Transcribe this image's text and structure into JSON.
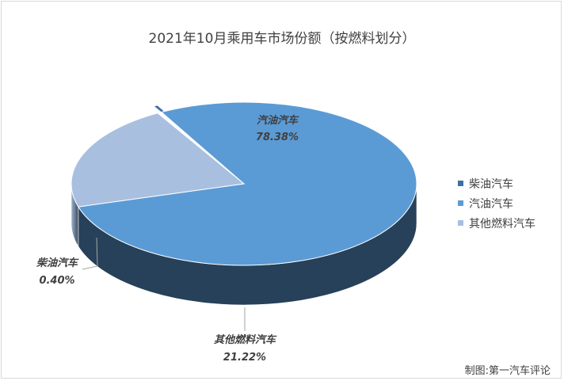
{
  "chart_data": {
    "type": "pie",
    "title": "2021年10月乘用车市场份额（按燃料划分）",
    "categories": [
      "柴油汽车",
      "汽油汽车",
      "其他燃料汽车"
    ],
    "values": [
      0.4,
      78.38,
      21.22
    ],
    "value_labels": [
      "0.40%",
      "78.38%",
      "21.22%"
    ],
    "colors": [
      "#3f6fa5",
      "#5b9bd5",
      "#a9bfe0"
    ],
    "legend_position": "right",
    "style": "3d-exploded-pie"
  },
  "credit": "制图:第一汽车评论"
}
